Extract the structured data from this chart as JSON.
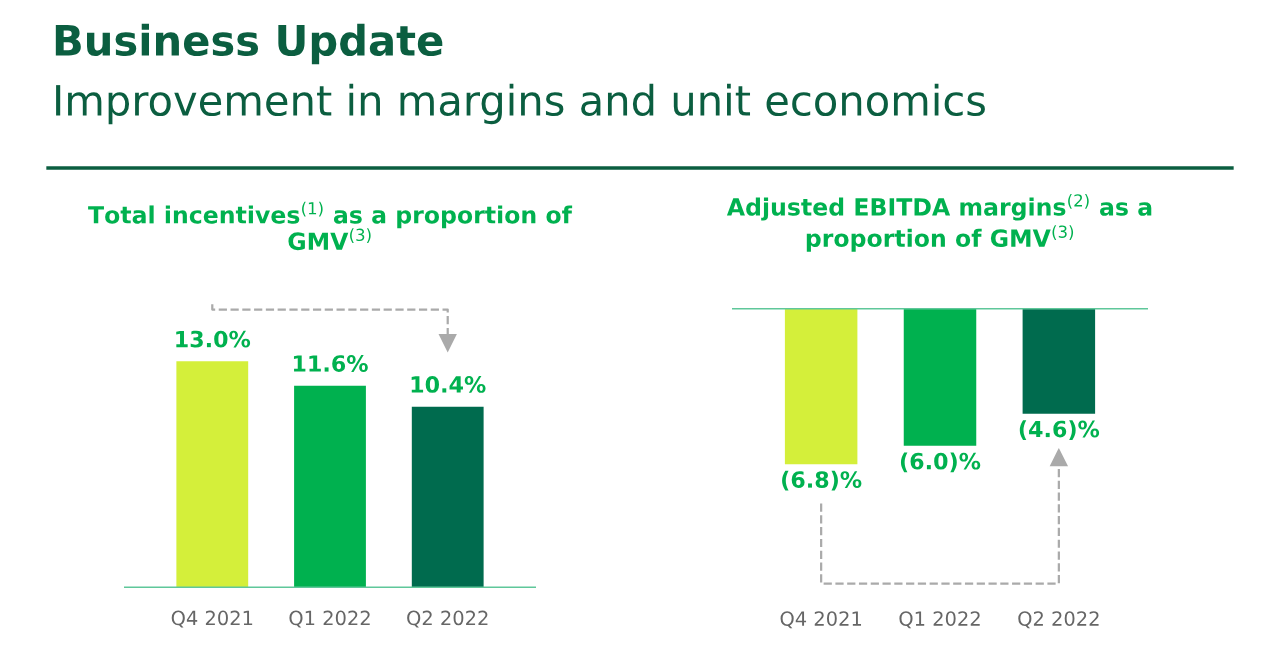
{
  "chart_data": [
    {
      "type": "bar",
      "title": "Total incentives$^{(1)}$ as a proportion of\nGMV$^{(3)}$",
      "annotations": [
        "Business Update",
        "Improvement in margins and unit economics"
      ],
      "categories": [
        "Q4 2021",
        "Q1 2022",
        "Q2 2022"
      ],
      "values": [
        13.0,
        11.6,
        10.4
      ],
      "value_labels": [
        "13.0%",
        "11.6%",
        "10.4%"
      ],
      "colors": [
        "#d4ef3a",
        "#00b14f",
        "#006b4e"
      ],
      "tick_labels": "x"
    },
    {
      "type": "bar",
      "title": "Adjusted EBITDA margins$^{(2)}$ as a\nproportion of GMV$^{(3)}$",
      "categories": [
        "Q4 2021",
        "Q1 2022",
        "Q2 2022"
      ],
      "values": [
        -6.8,
        -6.0,
        -4.6
      ],
      "value_labels": [
        "(6.8)%",
        "(6.0)%",
        "(4.6)%"
      ],
      "colors": [
        "#d4ef3a",
        "#00b14f",
        "#006b4e"
      ],
      "tick_labels": "x"
    }
  ]
}
